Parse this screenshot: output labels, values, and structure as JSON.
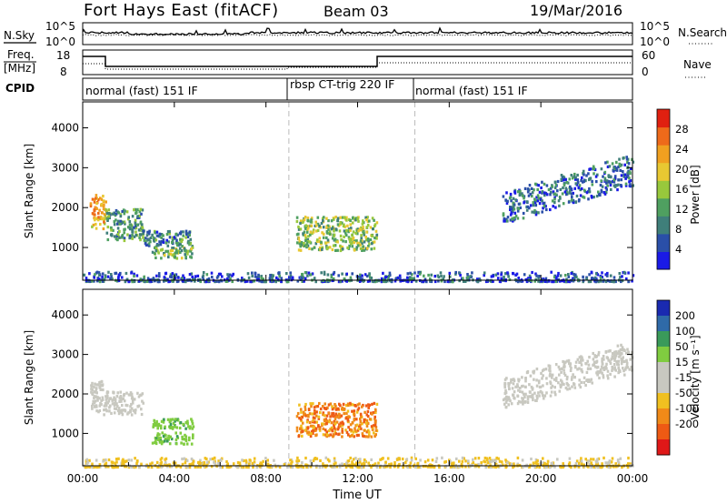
{
  "header": {
    "title": "Fort Hays East (fitACF)",
    "beam": "Beam 03",
    "date": "19/Mar/2016"
  },
  "status_panels": {
    "nsky_label": "N.Sky",
    "nsearch_label": "N.Search",
    "noise_ticks_left": [
      "10^5",
      "10^0"
    ],
    "noise_ticks_right": [
      "10^5",
      "10^0"
    ],
    "freq_label_1": "Freq.",
    "freq_label_2": "[MHz]",
    "freq_ticks": [
      "18",
      "8"
    ],
    "nave_label": "Nave",
    "nave_ticks": [
      "60",
      "0"
    ],
    "cpid_label": "CPID",
    "cpid_segments": [
      {
        "label": "normal (fast) 151 IF",
        "start_h": 0,
        "end_h": 9
      },
      {
        "label": "rbsp CT-trig 220 IF",
        "start_h": 9,
        "end_h": 14.5
      },
      {
        "label": "normal (fast) 151 IF",
        "start_h": 14.5,
        "end_h": 24
      }
    ]
  },
  "colors": {
    "power": [
      "#1a1ae6",
      "#2a4fa8",
      "#3f7f7a",
      "#4fa060",
      "#98c83c",
      "#e8c832",
      "#f0a020",
      "#ee6a1a",
      "#e02010"
    ],
    "velocity": [
      "#1a2ab0",
      "#2f6aa8",
      "#3a9a5a",
      "#80cc40",
      "#c8c8c0",
      "#c8c8c0",
      "#f0c020",
      "#f08a18",
      "#ee5a14",
      "#e01818"
    ]
  },
  "chart_data": [
    {
      "type": "heatmap",
      "name": "power",
      "xlabel": "",
      "ylabel": "Slant Range [km]",
      "xlim": [
        0,
        24
      ],
      "ylim": [
        180,
        4650
      ],
      "yticks": [
        1000,
        2000,
        3000,
        4000
      ],
      "colorbar": {
        "label": "Power [dB]",
        "ticks": [
          "4",
          "8",
          "12",
          "16",
          "20",
          "24",
          "28"
        ],
        "range": [
          0,
          30
        ]
      },
      "echo_regions": [
        {
          "t0": 0.3,
          "t1": 1.0,
          "r0": 1500,
          "r1": 2350,
          "value": 22
        },
        {
          "t0": 1.0,
          "t1": 2.6,
          "r0": 1200,
          "r1": 2000,
          "value": 11
        },
        {
          "t0": 2.6,
          "t1": 4.8,
          "r0": 1050,
          "r1": 1450,
          "value": 9
        },
        {
          "t0": 3.0,
          "t1": 4.8,
          "r0": 750,
          "r1": 1100,
          "value": 13
        },
        {
          "t0": 9.3,
          "t1": 12.8,
          "r0": 950,
          "r1": 1800,
          "value": 15
        },
        {
          "t0": 18.3,
          "t1": 24,
          "r0": 1700,
          "r1": 3300,
          "value": 7
        },
        {
          "t0": 0,
          "t1": 24,
          "r0": 180,
          "r1": 420,
          "value": 6
        }
      ]
    },
    {
      "type": "heatmap",
      "name": "velocity",
      "xlabel": "Time UT",
      "ylabel": "Slant Range [km]",
      "xlim": [
        0,
        24
      ],
      "ylim": [
        180,
        4650
      ],
      "yticks": [
        1000,
        2000,
        3000,
        4000
      ],
      "xticks": [
        "00:00",
        "04:00",
        "08:00",
        "12:00",
        "16:00",
        "20:00",
        "00:00"
      ],
      "colorbar": {
        "label": "Velocity [m s⁻¹]",
        "ticks": [
          "200",
          "100",
          "50",
          "15",
          "-15",
          "-50",
          "-100",
          "-200"
        ],
        "range": [
          -250,
          250
        ]
      },
      "echo_regions": [
        {
          "t0": 0.3,
          "t1": 1.0,
          "r0": 1500,
          "r1": 2350,
          "value": 0
        },
        {
          "t0": 1.0,
          "t1": 2.6,
          "r0": 1500,
          "r1": 2100,
          "value": 0
        },
        {
          "t0": 3.0,
          "t1": 4.8,
          "r0": 1150,
          "r1": 1400,
          "value": 40
        },
        {
          "t0": 3.0,
          "t1": 4.8,
          "r0": 750,
          "r1": 1050,
          "value": 40
        },
        {
          "t0": 9.3,
          "t1": 12.8,
          "r0": 950,
          "r1": 1800,
          "value": -90
        },
        {
          "t0": 18.3,
          "t1": 24,
          "r0": 1700,
          "r1": 3300,
          "value": 0
        },
        {
          "t0": 0,
          "t1": 24,
          "r0": 180,
          "r1": 420,
          "value": -20
        }
      ]
    }
  ]
}
